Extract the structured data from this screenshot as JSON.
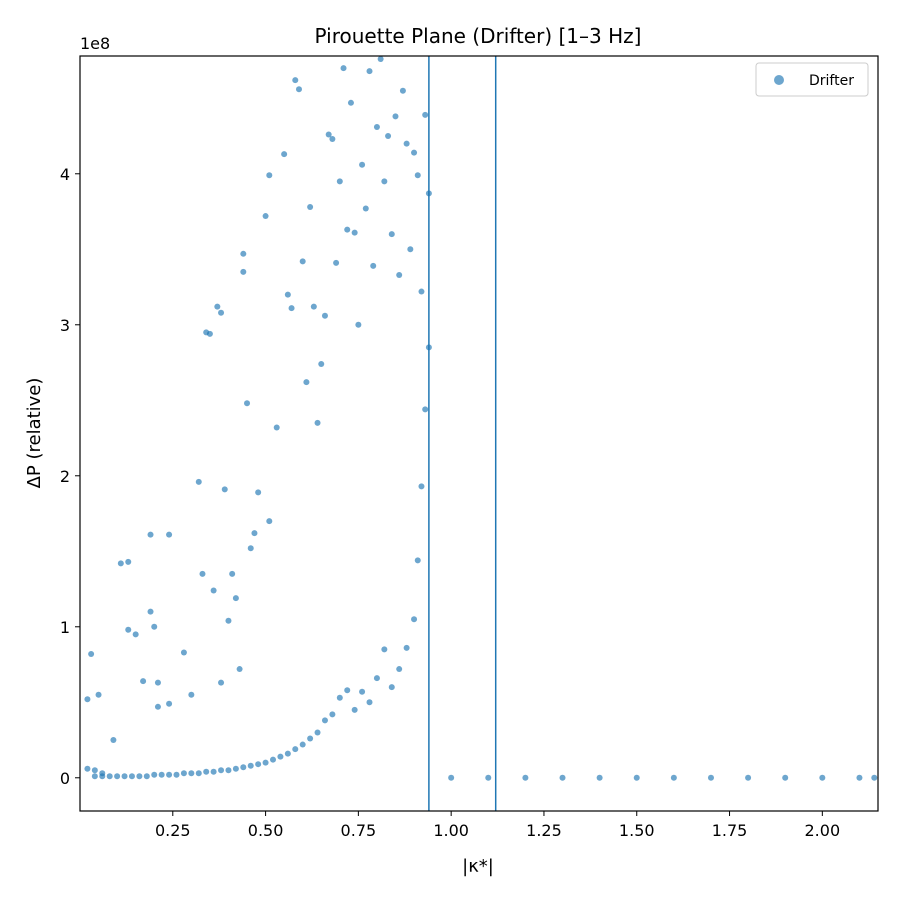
{
  "chart_data": {
    "type": "scatter",
    "title": "Pirouette Plane (Drifter)  [1–3 Hz]",
    "xlabel": "|κ*|",
    "ylabel": "ΔP (relative)",
    "y_multiplier_label": "1e8",
    "xlim": [
      0.0,
      2.15
    ],
    "ylim": [
      -0.22,
      4.78
    ],
    "y_units": "1e8",
    "x_ticks": [
      0.25,
      0.5,
      0.75,
      1.0,
      1.25,
      1.5,
      1.75,
      2.0
    ],
    "x_tick_labels": [
      "0.25",
      "0.50",
      "0.75",
      "1.00",
      "1.25",
      "1.50",
      "1.75",
      "2.00"
    ],
    "y_ticks": [
      0,
      1,
      2,
      3,
      4
    ],
    "y_tick_labels": [
      "0",
      "1",
      "2",
      "3",
      "4"
    ],
    "vertical_lines": [
      0.94,
      1.12
    ],
    "grid": false,
    "legend": {
      "position": "top-right",
      "entries": [
        "Drifter"
      ]
    },
    "series": [
      {
        "name": "Drifter",
        "color": "#1f77b4",
        "points": [
          [
            0.02,
            0.06
          ],
          [
            0.04,
            0.05
          ],
          [
            0.06,
            0.03
          ],
          [
            0.03,
            0.82
          ],
          [
            0.05,
            0.55
          ],
          [
            0.02,
            0.52
          ],
          [
            0.09,
            0.25
          ],
          [
            0.11,
            1.42
          ],
          [
            0.13,
            1.43
          ],
          [
            0.13,
            0.98
          ],
          [
            0.15,
            0.95
          ],
          [
            0.17,
            0.64
          ],
          [
            0.19,
            1.61
          ],
          [
            0.19,
            1.1
          ],
          [
            0.2,
            1.0
          ],
          [
            0.21,
            0.63
          ],
          [
            0.21,
            0.47
          ],
          [
            0.24,
            1.61
          ],
          [
            0.24,
            0.49
          ],
          [
            0.28,
            0.83
          ],
          [
            0.3,
            0.55
          ],
          [
            0.32,
            1.96
          ],
          [
            0.33,
            1.35
          ],
          [
            0.34,
            2.95
          ],
          [
            0.35,
            2.94
          ],
          [
            0.36,
            1.24
          ],
          [
            0.37,
            3.12
          ],
          [
            0.38,
            3.08
          ],
          [
            0.38,
            0.63
          ],
          [
            0.39,
            1.91
          ],
          [
            0.4,
            1.04
          ],
          [
            0.41,
            1.35
          ],
          [
            0.42,
            1.19
          ],
          [
            0.43,
            0.72
          ],
          [
            0.44,
            3.47
          ],
          [
            0.44,
            3.35
          ],
          [
            0.45,
            2.48
          ],
          [
            0.46,
            1.52
          ],
          [
            0.47,
            1.62
          ],
          [
            0.48,
            1.89
          ],
          [
            0.5,
            3.72
          ],
          [
            0.51,
            3.99
          ],
          [
            0.51,
            1.7
          ],
          [
            0.53,
            2.32
          ],
          [
            0.55,
            4.13
          ],
          [
            0.56,
            3.2
          ],
          [
            0.57,
            3.11
          ],
          [
            0.58,
            4.62
          ],
          [
            0.59,
            4.56
          ],
          [
            0.6,
            3.42
          ],
          [
            0.61,
            2.62
          ],
          [
            0.62,
            3.78
          ],
          [
            0.63,
            3.12
          ],
          [
            0.64,
            2.35
          ],
          [
            0.65,
            2.74
          ],
          [
            0.66,
            3.06
          ],
          [
            0.67,
            4.26
          ],
          [
            0.68,
            4.23
          ],
          [
            0.69,
            3.41
          ],
          [
            0.7,
            3.95
          ],
          [
            0.71,
            4.7
          ],
          [
            0.72,
            3.63
          ],
          [
            0.73,
            4.47
          ],
          [
            0.74,
            3.61
          ],
          [
            0.75,
            3.0
          ],
          [
            0.76,
            4.06
          ],
          [
            0.77,
            3.77
          ],
          [
            0.78,
            4.68
          ],
          [
            0.79,
            3.39
          ],
          [
            0.8,
            4.31
          ],
          [
            0.81,
            4.76
          ],
          [
            0.82,
            3.95
          ],
          [
            0.83,
            4.25
          ],
          [
            0.84,
            3.6
          ],
          [
            0.85,
            4.38
          ],
          [
            0.86,
            3.33
          ],
          [
            0.87,
            4.55
          ],
          [
            0.88,
            4.2
          ],
          [
            0.89,
            3.5
          ],
          [
            0.9,
            4.14
          ],
          [
            0.91,
            3.99
          ],
          [
            0.92,
            3.22
          ],
          [
            0.93,
            4.39
          ],
          [
            0.94,
            3.87
          ],
          [
            0.94,
            2.85
          ],
          [
            0.93,
            2.44
          ],
          [
            0.92,
            1.93
          ],
          [
            0.91,
            1.44
          ],
          [
            0.9,
            1.05
          ],
          [
            0.88,
            0.86
          ],
          [
            0.86,
            0.72
          ],
          [
            0.84,
            0.6
          ],
          [
            0.82,
            0.85
          ],
          [
            0.8,
            0.66
          ],
          [
            0.78,
            0.5
          ],
          [
            0.76,
            0.57
          ],
          [
            0.74,
            0.45
          ],
          [
            0.72,
            0.58
          ],
          [
            0.7,
            0.53
          ],
          [
            0.68,
            0.42
          ],
          [
            0.66,
            0.38
          ],
          [
            0.64,
            0.3
          ],
          [
            0.62,
            0.26
          ],
          [
            0.6,
            0.22
          ],
          [
            0.58,
            0.19
          ],
          [
            0.56,
            0.16
          ],
          [
            0.54,
            0.14
          ],
          [
            0.52,
            0.12
          ],
          [
            0.5,
            0.1
          ],
          [
            0.48,
            0.09
          ],
          [
            0.46,
            0.08
          ],
          [
            0.44,
            0.07
          ],
          [
            0.42,
            0.06
          ],
          [
            0.4,
            0.05
          ],
          [
            0.38,
            0.05
          ],
          [
            0.36,
            0.04
          ],
          [
            0.34,
            0.04
          ],
          [
            0.32,
            0.03
          ],
          [
            0.3,
            0.03
          ],
          [
            0.28,
            0.03
          ],
          [
            0.26,
            0.02
          ],
          [
            0.24,
            0.02
          ],
          [
            0.22,
            0.02
          ],
          [
            0.2,
            0.02
          ],
          [
            0.18,
            0.01
          ],
          [
            0.16,
            0.01
          ],
          [
            0.14,
            0.01
          ],
          [
            0.12,
            0.01
          ],
          [
            0.1,
            0.01
          ],
          [
            0.08,
            0.01
          ],
          [
            0.06,
            0.01
          ],
          [
            0.04,
            0.01
          ],
          [
            1.0,
            0.0
          ],
          [
            1.1,
            0.0
          ],
          [
            1.2,
            0.0
          ],
          [
            1.3,
            0.0
          ],
          [
            1.4,
            0.0
          ],
          [
            1.5,
            0.0
          ],
          [
            1.6,
            0.0
          ],
          [
            1.7,
            0.0
          ],
          [
            1.8,
            0.0
          ],
          [
            1.9,
            0.0
          ],
          [
            2.0,
            0.0
          ],
          [
            2.1,
            0.0
          ],
          [
            2.14,
            0.0
          ]
        ]
      }
    ]
  }
}
